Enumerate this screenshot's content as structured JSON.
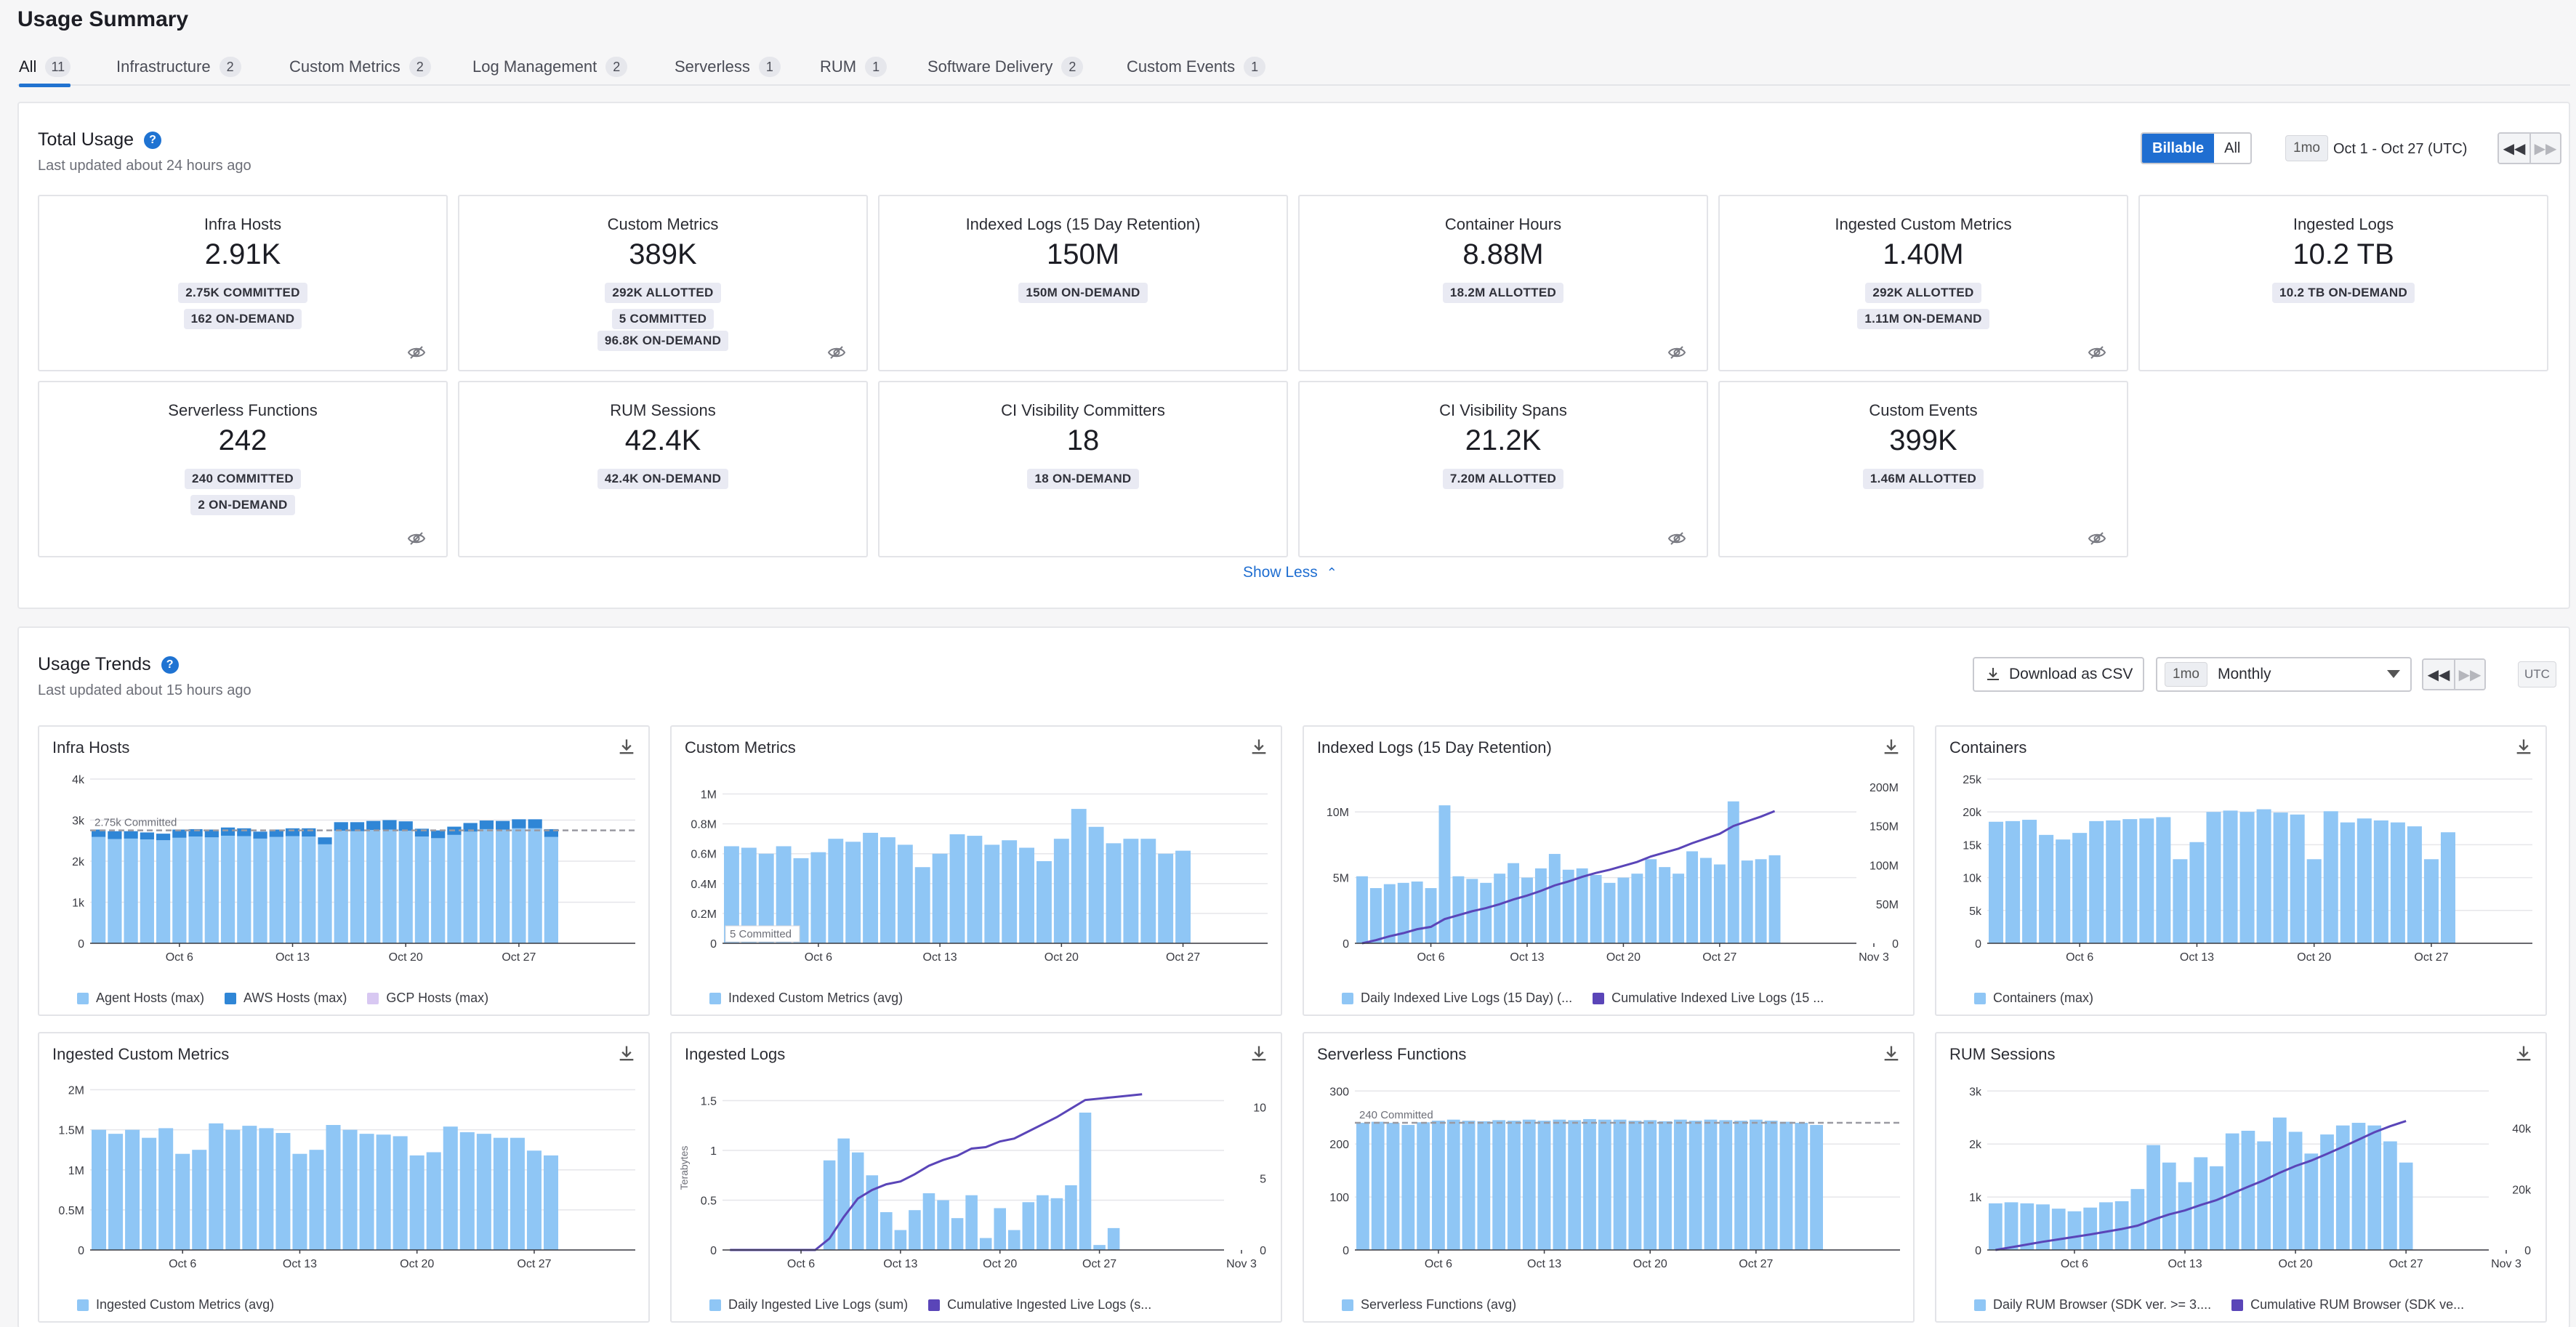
{
  "page_title": "Usage Summary",
  "tabs": [
    {
      "label": "All",
      "count": "11"
    },
    {
      "label": "Infrastructure",
      "count": "2"
    },
    {
      "label": "Custom Metrics",
      "count": "2"
    },
    {
      "label": "Log Management",
      "count": "2"
    },
    {
      "label": "Serverless",
      "count": "1"
    },
    {
      "label": "RUM",
      "count": "1"
    },
    {
      "label": "Software Delivery",
      "count": "2"
    },
    {
      "label": "Custom Events",
      "count": "1"
    }
  ],
  "total_usage": {
    "title": "Total Usage",
    "updated": "Last updated about 24 hours ago",
    "toggle": {
      "billable": "Billable",
      "all": "All"
    },
    "range_chip": "1mo",
    "range_text": "Oct 1 - Oct 27 (UTC)",
    "show_less": "Show Less",
    "cards": [
      {
        "title": "Infra Hosts",
        "value": "2.91K",
        "badges": [
          "2.75K COMMITTED",
          "162 ON-DEMAND"
        ],
        "hidden_icon": true
      },
      {
        "title": "Custom Metrics",
        "value": "389K",
        "badges": [
          "292K ALLOTTED",
          "5 COMMITTED",
          "96.8K ON-DEMAND"
        ],
        "hidden_icon": true
      },
      {
        "title": "Indexed Logs (15 Day Retention)",
        "value": "150M",
        "badges": [
          "150M ON-DEMAND"
        ],
        "hidden_icon": false
      },
      {
        "title": "Container Hours",
        "value": "8.88M",
        "badges": [
          "18.2M ALLOTTED"
        ],
        "hidden_icon": true
      },
      {
        "title": "Ingested Custom Metrics",
        "value": "1.40M",
        "badges": [
          "292K ALLOTTED",
          "1.11M ON-DEMAND"
        ],
        "hidden_icon": true
      },
      {
        "title": "Ingested Logs",
        "value": "10.2 TB",
        "badges": [
          "10.2 TB ON-DEMAND"
        ],
        "hidden_icon": false
      },
      {
        "title": "Serverless Functions",
        "value": "242",
        "badges": [
          "240 COMMITTED",
          "2 ON-DEMAND"
        ],
        "hidden_icon": true
      },
      {
        "title": "RUM Sessions",
        "value": "42.4K",
        "badges": [
          "42.4K ON-DEMAND"
        ],
        "hidden_icon": false
      },
      {
        "title": "CI Visibility Committers",
        "value": "18",
        "badges": [
          "18 ON-DEMAND"
        ],
        "hidden_icon": false
      },
      {
        "title": "CI Visibility Spans",
        "value": "21.2K",
        "badges": [
          "7.20M ALLOTTED"
        ],
        "hidden_icon": true
      },
      {
        "title": "Custom Events",
        "value": "399K",
        "badges": [
          "1.46M ALLOTTED"
        ],
        "hidden_icon": true
      }
    ]
  },
  "usage_trends": {
    "title": "Usage Trends",
    "updated": "Last updated about 15 hours ago",
    "download_label": "Download as CSV",
    "period_chip": "1mo",
    "period_value": "Monthly",
    "utc_label": "UTC"
  },
  "colors": {
    "accent": "#1f6ed1",
    "bar_light": "#8fc6f5",
    "bar_dark": "#2f86d6",
    "bar_lilac": "#d8c8f2",
    "line_purple": "#5a45b8",
    "committed_line": "#9a9aa2"
  },
  "chart_data": [
    {
      "type": "bar",
      "title": "Infra Hosts",
      "x_ticks": [
        "Oct 6",
        "Oct 13",
        "Oct 20",
        "Oct 27"
      ],
      "y_ticks": [
        "0",
        "1k",
        "2k",
        "3k",
        "4k"
      ],
      "ylim": [
        0,
        4000
      ],
      "stacked": true,
      "series": [
        {
          "name": "Agent Hosts (max)",
          "color": "#8fc6f5",
          "values": [
            2590,
            2540,
            2550,
            2530,
            2510,
            2570,
            2600,
            2580,
            2620,
            2610,
            2550,
            2590,
            2610,
            2600,
            2410,
            2740,
            2730,
            2760,
            2770,
            2740,
            2600,
            2560,
            2640,
            2720,
            2780,
            2770,
            2800,
            2800,
            2590
          ]
        },
        {
          "name": "AWS Hosts (max)",
          "color": "#2f86d6",
          "values": [
            180,
            190,
            180,
            170,
            160,
            200,
            180,
            190,
            200,
            190,
            170,
            180,
            190,
            200,
            170,
            210,
            220,
            220,
            230,
            230,
            190,
            190,
            200,
            210,
            210,
            210,
            220,
            220,
            190
          ]
        },
        {
          "name": "GCP Hosts (max)",
          "color": "#d8c8f2",
          "values": [
            0,
            0,
            0,
            0,
            0,
            0,
            0,
            0,
            0,
            0,
            0,
            0,
            0,
            0,
            0,
            0,
            0,
            0,
            0,
            0,
            0,
            0,
            0,
            0,
            0,
            0,
            0,
            0,
            0
          ]
        }
      ],
      "committed": {
        "label": "2.75k Committed",
        "value": 2750
      }
    },
    {
      "type": "bar",
      "title": "Custom Metrics",
      "x_ticks": [
        "Oct 6",
        "Oct 13",
        "Oct 20",
        "Oct 27"
      ],
      "y_ticks": [
        "0",
        "0.2M",
        "0.4M",
        "0.6M",
        "0.8M",
        "1M"
      ],
      "ylim": [
        0,
        1100000
      ],
      "series": [
        {
          "name": "Indexed Custom Metrics (avg)",
          "color": "#8fc6f5",
          "values": [
            650000,
            640000,
            600000,
            650000,
            570000,
            610000,
            700000,
            680000,
            740000,
            710000,
            660000,
            510000,
            600000,
            730000,
            720000,
            660000,
            690000,
            640000,
            550000,
            700000,
            900000,
            780000,
            670000,
            700000,
            700000,
            600000,
            620000
          ]
        }
      ],
      "committed": {
        "label": "5 Committed",
        "value": 5
      }
    },
    {
      "type": "bar",
      "title": "Indexed Logs (15 Day Retention)",
      "x_ticks": [
        "Oct 6",
        "Oct 13",
        "Oct 20",
        "Oct 27",
        "Nov 3"
      ],
      "y_ticks": [
        "0",
        "5M",
        "10M"
      ],
      "y2_ticks": [
        "0",
        "50M",
        "100M",
        "150M",
        "200M"
      ],
      "ylim": [
        0,
        12500000
      ],
      "y2lim": [
        0,
        210000000
      ],
      "series": [
        {
          "name": "Daily Indexed Live Logs (15 Day) (...",
          "color": "#8fc6f5",
          "values": [
            5100000,
            4200000,
            4500000,
            4600000,
            4700000,
            4200000,
            10500000,
            5100000,
            4900000,
            4600000,
            5300000,
            6100000,
            5000000,
            5700000,
            6800000,
            5600000,
            5700000,
            5200000,
            4600000,
            5000000,
            5300000,
            6400000,
            5800000,
            5300000,
            7000000,
            6500000,
            6000000,
            10800000,
            6300000,
            6400000,
            6700000
          ]
        },
        {
          "name": "Cumulative Indexed Live Logs (15 ...",
          "color": "#5a45b8",
          "type": "line",
          "axis": "right",
          "values": [
            0,
            4000000,
            9000000,
            13000000,
            18000000,
            21000000,
            31000000,
            36000000,
            41000000,
            45000000,
            50000000,
            56000000,
            61000000,
            67000000,
            74000000,
            79000000,
            85000000,
            90000000,
            94000000,
            99000000,
            104000000,
            111000000,
            116000000,
            121000000,
            128000000,
            134000000,
            140000000,
            150000000,
            156000000,
            162000000,
            169000000
          ]
        }
      ]
    },
    {
      "type": "bar",
      "title": "Containers",
      "x_ticks": [
        "Oct 6",
        "Oct 13",
        "Oct 20",
        "Oct 27"
      ],
      "y_ticks": [
        "0",
        "5k",
        "10k",
        "15k",
        "20k",
        "25k"
      ],
      "ylim": [
        0,
        25000
      ],
      "series": [
        {
          "name": "Containers (max)",
          "color": "#8fc6f5",
          "values": [
            18500,
            18600,
            18800,
            16500,
            15800,
            16800,
            18600,
            18700,
            18900,
            19000,
            19200,
            12800,
            15400,
            20000,
            20200,
            20000,
            20400,
            19900,
            19600,
            12800,
            20100,
            18400,
            19000,
            18700,
            18400,
            17800,
            12800,
            16900
          ]
        }
      ]
    },
    {
      "type": "bar",
      "title": "Ingested Custom Metrics",
      "x_ticks": [
        "Oct 6",
        "Oct 13",
        "Oct 20",
        "Oct 27"
      ],
      "y_ticks": [
        "0",
        "0.5M",
        "1M",
        "1.5M",
        "2M"
      ],
      "ylim": [
        0,
        2050000
      ],
      "series": [
        {
          "name": "Ingested Custom Metrics (avg)",
          "color": "#8fc6f5",
          "values": [
            1500000,
            1450000,
            1500000,
            1400000,
            1520000,
            1200000,
            1250000,
            1580000,
            1500000,
            1550000,
            1520000,
            1460000,
            1200000,
            1250000,
            1560000,
            1500000,
            1450000,
            1440000,
            1420000,
            1180000,
            1220000,
            1540000,
            1470000,
            1450000,
            1400000,
            1400000,
            1240000,
            1180000
          ]
        }
      ]
    },
    {
      "type": "bar",
      "title": "Ingested Logs",
      "ylabel": "Terabytes",
      "x_ticks": [
        "Oct 6",
        "Oct 13",
        "Oct 20",
        "Oct 27",
        "Nov 3"
      ],
      "y_ticks": [
        "0",
        "0.5",
        "1",
        "1.5"
      ],
      "y2_ticks": [
        "0",
        "5",
        "10"
      ],
      "ylim": [
        0,
        1.65
      ],
      "y2lim": [
        0,
        11.5
      ],
      "series": [
        {
          "name": "Daily Ingested Live Logs (sum)",
          "color": "#8fc6f5",
          "values": [
            0,
            0,
            0,
            0,
            0,
            0,
            0,
            0.9,
            1.12,
            0.98,
            0.75,
            0.38,
            0.2,
            0.4,
            0.57,
            0.5,
            0.32,
            0.55,
            0.12,
            0.42,
            0.2,
            0.48,
            0.55,
            0.52,
            0.65,
            1.38,
            0.05,
            0.22,
            0,
            0
          ]
        },
        {
          "name": "Cumulative Ingested Live Logs (s...",
          "color": "#5a45b8",
          "type": "line",
          "axis": "right",
          "values": [
            0,
            0,
            0,
            0,
            0,
            0,
            0,
            0.8,
            2.3,
            3.6,
            4.2,
            4.6,
            4.8,
            5.3,
            5.9,
            6.3,
            6.6,
            7.1,
            7.2,
            7.6,
            7.8,
            8.3,
            8.8,
            9.3,
            9.9,
            10.5,
            10.6,
            10.7,
            10.8,
            10.9
          ]
        }
      ]
    },
    {
      "type": "bar",
      "title": "Serverless Functions",
      "x_ticks": [
        "Oct 6",
        "Oct 13",
        "Oct 20",
        "Oct 27"
      ],
      "y_ticks": [
        "0",
        "100",
        "200",
        "300"
      ],
      "ylim": [
        0,
        310
      ],
      "series": [
        {
          "name": "Serverless Functions (avg)",
          "color": "#8fc6f5",
          "values": [
            240,
            242,
            240,
            236,
            241,
            244,
            246,
            244,
            243,
            245,
            244,
            246,
            244,
            246,
            245,
            247,
            246,
            246,
            244,
            245,
            243,
            246,
            244,
            246,
            245,
            244,
            246,
            244,
            242,
            240,
            236
          ]
        }
      ],
      "committed": {
        "label": "240 Committed",
        "value": 240
      }
    },
    {
      "type": "bar",
      "title": "RUM Sessions",
      "x_ticks": [
        "Oct 6",
        "Oct 13",
        "Oct 20",
        "Oct 27",
        "Nov 3"
      ],
      "y_ticks": [
        "0",
        "1k",
        "2k",
        "3k"
      ],
      "y2_ticks": [
        "0",
        "20k",
        "40k"
      ],
      "ylim": [
        0,
        3100
      ],
      "y2lim": [
        0,
        54000
      ],
      "series": [
        {
          "name": "Daily RUM Browser (SDK ver. >= 3....",
          "color": "#8fc6f5",
          "values": [
            880,
            900,
            880,
            860,
            780,
            730,
            800,
            900,
            920,
            1150,
            1980,
            1650,
            1280,
            1750,
            1580,
            2200,
            2250,
            2050,
            2500,
            2230,
            1820,
            2180,
            2350,
            2400,
            2350,
            2050,
            1650
          ]
        },
        {
          "name": "Cumulative RUM Browser (SDK ve...",
          "color": "#5a45b8",
          "type": "line",
          "axis": "right",
          "values": [
            0,
            900,
            1800,
            2700,
            3500,
            4300,
            5100,
            6000,
            6900,
            8000,
            10000,
            11700,
            13000,
            14800,
            16400,
            18600,
            20800,
            22900,
            25400,
            27600,
            29400,
            31600,
            33900,
            36300,
            38700,
            40700,
            42400
          ]
        }
      ]
    }
  ]
}
